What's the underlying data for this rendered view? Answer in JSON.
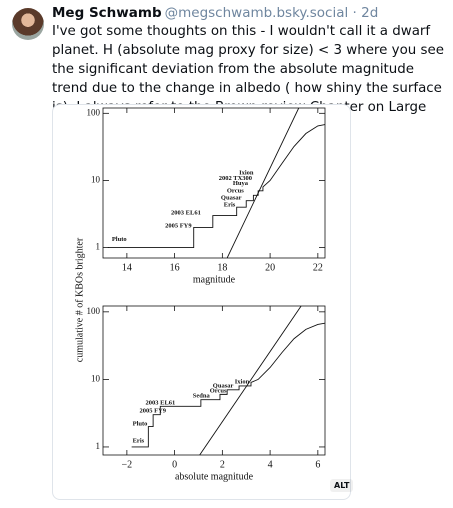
{
  "post": {
    "author": "Meg Schwamb",
    "meta": "@megschwamb.bsky.social · 2d",
    "text": "I've got some thoughts on this - I wouldn't call it a dwarf planet. H (absolute mag proxy for size) < 3 where you see the significant deviation from the absolute magnitude trend due to the change in albedo ( how shiny the surface is).  I always refer to the Brown review Chapter on Large KBOs",
    "alt_badge": "ALT"
  },
  "figure_ylabel": "cumulative # of KBOs brighter",
  "chart_data": [
    {
      "type": "line",
      "xlabel": "magnitude",
      "log_y": true,
      "xlim": [
        13,
        22.3
      ],
      "ylim": [
        0.7,
        120
      ],
      "xticks": [
        14,
        16,
        18,
        20,
        22
      ],
      "yticks": [
        1,
        10,
        100
      ],
      "series": [
        {
          "name": "cumulative",
          "color": "#111111",
          "x": [
            13.2,
            16.8,
            16.8,
            17.6,
            17.6,
            18.6,
            18.6,
            19.0,
            19.0,
            19.3,
            19.3,
            19.5,
            19.5,
            19.7,
            19.7,
            20.0,
            20.5,
            21.0,
            21.5,
            22.0,
            22.3
          ],
          "values": [
            1,
            1,
            2,
            2,
            3,
            3,
            4,
            4,
            5,
            5,
            6,
            6,
            7,
            7,
            8,
            10,
            18,
            32,
            50,
            65,
            68
          ]
        },
        {
          "name": "fit",
          "color": "#111111",
          "x": [
            18.2,
            21.2
          ],
          "values": [
            0.7,
            120
          ]
        }
      ],
      "annotations": [
        {
          "text": "Pluto",
          "x": 13.37,
          "y": 1.31
        },
        {
          "text": "2005 FY9",
          "x": 15.6,
          "y": 2.1
        },
        {
          "text": "2003 EL61",
          "x": 15.85,
          "y": 3.3
        },
        {
          "text": "Eris",
          "x": 18.06,
          "y": 4.3
        },
        {
          "text": "Quasar",
          "x": 17.94,
          "y": 5.5
        },
        {
          "text": "Orcus",
          "x": 18.19,
          "y": 7
        },
        {
          "text": "Huya",
          "x": 18.44,
          "y": 9
        },
        {
          "text": "2002 TX300",
          "x": 17.85,
          "y": 10.7
        },
        {
          "text": "Ixion",
          "x": 18.7,
          "y": 13
        }
      ]
    },
    {
      "type": "line",
      "xlabel": "absolute magnitude",
      "log_y": true,
      "xlim": [
        -3,
        6.3
      ],
      "ylim": [
        0.76,
        122
      ],
      "xticks": [
        {
          "value": -2,
          "label": "−2"
        },
        0,
        2,
        4,
        6
      ],
      "yticks": [
        1,
        10,
        100
      ],
      "series": [
        {
          "name": "cumulative",
          "color": "#111111",
          "x": [
            -1.8,
            -1.1,
            -1.1,
            -0.9,
            -0.9,
            -0.6,
            -0.6,
            1.1,
            1.1,
            1.9,
            1.9,
            2.2,
            2.2,
            2.7,
            2.7,
            3.2,
            3.2,
            3.5,
            4,
            4.5,
            5,
            5.5,
            6,
            6.3
          ],
          "values": [
            1,
            1,
            2,
            2,
            3,
            3,
            4,
            4,
            5,
            5,
            6,
            6,
            7,
            7,
            8,
            8,
            9,
            10,
            15,
            25,
            40,
            55,
            65,
            68
          ]
        },
        {
          "name": "fit",
          "color": "#111111",
          "x": [
            1.05,
            5.3
          ],
          "values": [
            0.76,
            122
          ]
        }
      ],
      "annotations": [
        {
          "text": "Eris",
          "x": -1.76,
          "y": 1.23
        },
        {
          "text": "Pluto",
          "x": -1.76,
          "y": 2.2
        },
        {
          "text": "2005 FY9",
          "x": -1.47,
          "y": 3.4
        },
        {
          "text": "2003 EL61",
          "x": -1.22,
          "y": 4.5
        },
        {
          "text": "Sedna",
          "x": 0.76,
          "y": 5.7
        },
        {
          "text": "Orcus",
          "x": 1.47,
          "y": 6.7
        },
        {
          "text": "Quasar",
          "x": 1.6,
          "y": 8
        },
        {
          "text": "Ixion",
          "x": 2.52,
          "y": 9.1
        }
      ]
    }
  ]
}
